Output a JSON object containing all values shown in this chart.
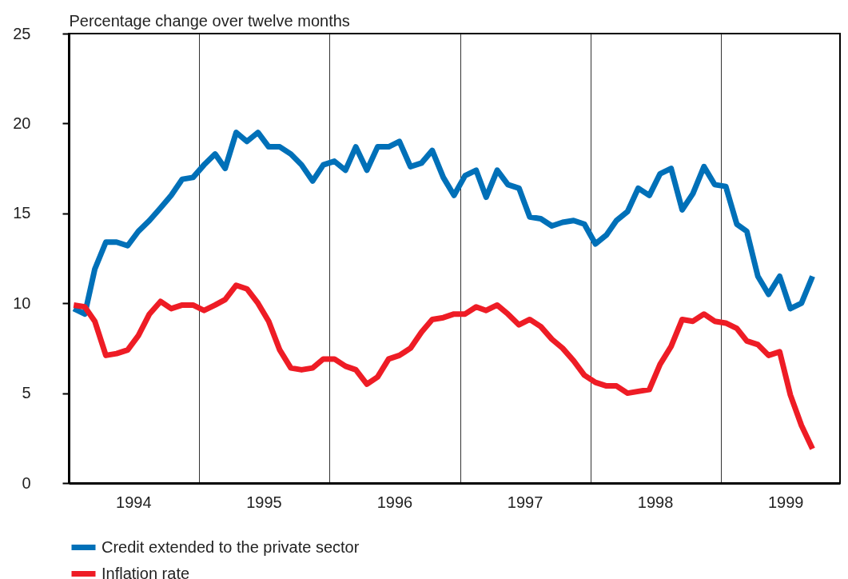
{
  "chart_data": {
    "type": "line",
    "ylabel": "Percentage change over twelve months",
    "x": [
      "1994-01-15",
      "1994-02-15",
      "1994-03-15",
      "1994-04-15",
      "1994-05-15",
      "1994-06-15",
      "1994-07-15",
      "1994-08-15",
      "1994-09-15",
      "1994-10-15",
      "1994-11-15",
      "1994-12-15",
      "1995-01-15",
      "1995-02-15",
      "1995-03-15",
      "1995-04-15",
      "1995-05-15",
      "1995-06-15",
      "1995-07-15",
      "1995-08-15",
      "1995-09-15",
      "1995-10-15",
      "1995-11-15",
      "1995-12-15",
      "1996-01-15",
      "1996-02-15",
      "1996-03-15",
      "1996-04-15",
      "1996-05-15",
      "1996-06-15",
      "1996-07-15",
      "1996-08-15",
      "1996-09-15",
      "1996-10-15",
      "1996-11-15",
      "1996-12-15",
      "1997-01-15",
      "1997-02-15",
      "1997-03-15",
      "1997-04-15",
      "1997-05-15",
      "1997-06-15",
      "1997-07-15",
      "1997-08-15",
      "1997-09-15",
      "1997-10-15",
      "1997-11-15",
      "1997-12-15",
      "1998-01-15",
      "1998-02-15",
      "1998-03-15",
      "1998-04-15",
      "1998-05-15",
      "1998-06-15",
      "1998-07-15",
      "1998-08-15",
      "1998-09-15",
      "1998-10-15",
      "1998-11-15",
      "1998-12-15",
      "1999-01-15",
      "1999-02-15",
      "1999-03-15",
      "1999-04-15",
      "1999-05-15",
      "1999-06-15",
      "1999-07-15",
      "1999-08-15",
      "1999-09-15"
    ],
    "series": [
      {
        "name": "Credit extended to the private sector",
        "color": "#0070b8",
        "values": [
          9.7,
          9.4,
          11.9,
          13.4,
          13.4,
          13.2,
          14.0,
          14.6,
          15.3,
          16.0,
          16.9,
          17.0,
          17.7,
          18.3,
          17.5,
          19.5,
          19.0,
          19.5,
          18.7,
          18.7,
          18.3,
          17.7,
          16.8,
          17.7,
          17.9,
          17.4,
          18.7,
          17.4,
          18.7,
          18.7,
          19.0,
          17.6,
          17.8,
          18.5,
          17.0,
          16.0,
          17.1,
          17.4,
          15.9,
          17.4,
          16.6,
          16.4,
          14.8,
          14.7,
          14.3,
          14.5,
          14.6,
          14.4,
          13.3,
          13.8,
          14.6,
          15.1,
          16.4,
          16.0,
          17.2,
          17.5,
          15.2,
          16.1,
          17.6,
          16.6,
          16.5,
          14.4,
          14.0,
          11.5,
          10.5,
          11.5,
          9.7,
          10.0,
          11.5
        ]
      },
      {
        "name": "Inflation rate",
        "color": "#ee1c25",
        "values": [
          9.9,
          9.8,
          9.0,
          7.1,
          7.2,
          7.4,
          8.2,
          9.4,
          10.1,
          9.7,
          9.9,
          9.9,
          9.6,
          9.9,
          10.2,
          11.0,
          10.8,
          10.0,
          9.0,
          7.4,
          6.4,
          6.3,
          6.4,
          6.9,
          6.9,
          6.5,
          6.3,
          5.5,
          5.9,
          6.9,
          7.1,
          7.5,
          8.4,
          9.1,
          9.2,
          9.4,
          9.4,
          9.8,
          9.6,
          9.9,
          9.4,
          8.8,
          9.1,
          8.7,
          8.0,
          7.5,
          6.8,
          6.0,
          5.6,
          5.4,
          5.4,
          5.0,
          5.1,
          5.2,
          6.6,
          7.6,
          9.1,
          9.0,
          9.4,
          9.0,
          8.9,
          8.6,
          7.9,
          7.7,
          7.1,
          7.3,
          4.9,
          3.2,
          1.9
        ]
      }
    ],
    "xlim": [
      "1994-01-01",
      "1999-12-01"
    ],
    "xticks": [
      {
        "value": "1994-07-01",
        "label": "1994"
      },
      {
        "value": "1995-01-01",
        "label": null
      },
      {
        "value": "1995-07-01",
        "label": "1995"
      },
      {
        "value": "1996-01-01",
        "label": null
      },
      {
        "value": "1996-07-01",
        "label": "1996"
      },
      {
        "value": "1997-01-01",
        "label": null
      },
      {
        "value": "1997-07-01",
        "label": "1997"
      },
      {
        "value": "1998-01-01",
        "label": null
      },
      {
        "value": "1998-07-01",
        "label": "1998"
      },
      {
        "value": "1999-01-01",
        "label": null
      },
      {
        "value": "1999-07-01",
        "label": "1999"
      }
    ],
    "ylim": [
      0,
      25
    ],
    "yticks": [
      0,
      5,
      10,
      15,
      20,
      25
    ],
    "grid": "x",
    "legend": "bottom"
  }
}
